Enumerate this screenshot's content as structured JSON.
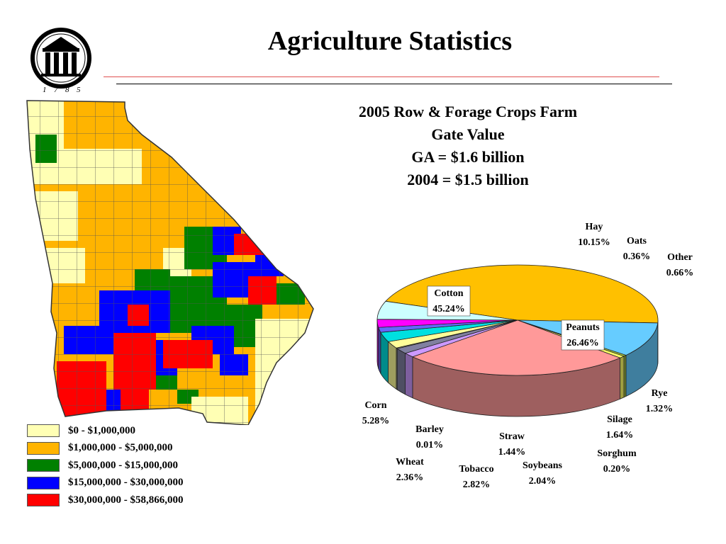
{
  "title": "Agriculture Statistics",
  "logo": {
    "icon": "arch-logo-icon",
    "year_digits": [
      "1",
      "7",
      "8",
      "5"
    ]
  },
  "subtitle_lines": [
    "2005 Row & Forage Crops Farm",
    "Gate Value",
    "GA = $1.6 billion",
    "2004 = $1.5 billion"
  ],
  "map_legend": [
    {
      "label": "$0 - $1,000,000",
      "color": "#ffffb4"
    },
    {
      "label": "$1,000,000 - $5,000,000",
      "color": "#ffb400"
    },
    {
      "label": "$5,000,000 - $15,000,000",
      "color": "#008000"
    },
    {
      "label": "$15,000,000 - $30,000,000",
      "color": "#0000ff"
    },
    {
      "label": "$30,000,000 - $58,866,000",
      "color": "#ff0000"
    }
  ],
  "chart_data": {
    "type": "pie",
    "title": "2005 Row & Forage Crops Farm Gate Value",
    "slices": [
      {
        "name": "Cotton",
        "value": 45.24,
        "label": "45.24%",
        "color": "#ffc000"
      },
      {
        "name": "Hay",
        "value": 10.15,
        "label": "10.15%",
        "color": "#66ccff"
      },
      {
        "name": "Oats",
        "value": 0.36,
        "label": "0.36%",
        "color": "#b0d040"
      },
      {
        "name": "Other",
        "value": 0.66,
        "label": "0.66%",
        "color": "#ffff66"
      },
      {
        "name": "Peanuts",
        "value": 26.46,
        "label": "26.46%",
        "color": "#ff9999"
      },
      {
        "name": "Rye",
        "value": 1.32,
        "label": "1.32%",
        "color": "#cc99ff"
      },
      {
        "name": "Silage",
        "value": 1.64,
        "label": "1.64%",
        "color": "#8080a0"
      },
      {
        "name": "Sorghum",
        "value": 0.2,
        "label": "0.20%",
        "color": "#cccc99"
      },
      {
        "name": "Soybeans",
        "value": 2.04,
        "label": "2.04%",
        "color": "#ffff99"
      },
      {
        "name": "Tobacco",
        "value": 2.82,
        "label": "2.82%",
        "color": "#00e0e0"
      },
      {
        "name": "Straw",
        "value": 1.44,
        "label": "1.44%",
        "color": "#6666ff"
      },
      {
        "name": "Wheat",
        "value": 2.36,
        "label": "2.36%",
        "color": "#ff00ff"
      },
      {
        "name": "Barley",
        "value": 0.01,
        "label": "0.01%",
        "color": "#444444"
      },
      {
        "name": "Corn",
        "value": 5.28,
        "label": "5.28%",
        "color": "#ccffff"
      }
    ]
  }
}
